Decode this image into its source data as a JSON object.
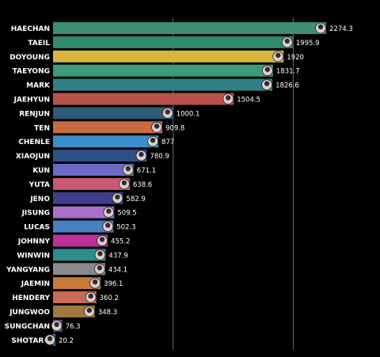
{
  "chart_data": {
    "type": "bar",
    "orientation": "horizontal",
    "title": "",
    "xlabel": "",
    "ylabel": "",
    "grid": "vertical lines",
    "xlim": [
      0,
      2300
    ],
    "categories": [
      "HAECHAN",
      "TAEIL",
      "DOYOUNG",
      "TAEYONG",
      "MARK",
      "JAEHYUN",
      "RENJUN",
      "TEN",
      "CHENLE",
      "XIAOJUN",
      "KUN",
      "YUTA",
      "JENO",
      "JISUNG",
      "LUCAS",
      "JOHNNY",
      "WINWIN",
      "YANGYANG",
      "JAEMIN",
      "HENDERY",
      "JUNGWOO",
      "SUNGCHAN",
      "SHOTARO"
    ],
    "values": [
      2274.3,
      1995.9,
      1920,
      1831.7,
      1826.6,
      1504.5,
      1000.1,
      909.8,
      877,
      780.9,
      671.1,
      638.6,
      582.9,
      509.5,
      502.3,
      455.2,
      437.9,
      434.1,
      396.1,
      360.2,
      348.3,
      76.3,
      20.2
    ],
    "value_labels": [
      "2274.3",
      "1995.9",
      "1920",
      "1831.7",
      "1826.6",
      "1504.5",
      "1000.1",
      "909.8",
      "877",
      "780.9",
      "671.1",
      "638.6",
      "582.9",
      "509.5",
      "502.3",
      "455.2",
      "437.9",
      "434.1",
      "396.1",
      "360.2",
      "348.3",
      "76.3",
      "20.2"
    ],
    "colors": [
      "#3a8f73",
      "#2f8c6a",
      "#d9b53c",
      "#3d9b7a",
      "#2e8286",
      "#b8524a",
      "#2f5a78",
      "#c96a45",
      "#3a8fca",
      "#2e4f84",
      "#6a6ac6",
      "#c85a73",
      "#3e3e8c",
      "#a870c8",
      "#4a7fc4",
      "#c0309a",
      "#2e8c8c",
      "#8a8a8a",
      "#c97a3a",
      "#c86a5a",
      "#a07842",
      "#6a4fa8",
      "#3a6ab0"
    ]
  }
}
